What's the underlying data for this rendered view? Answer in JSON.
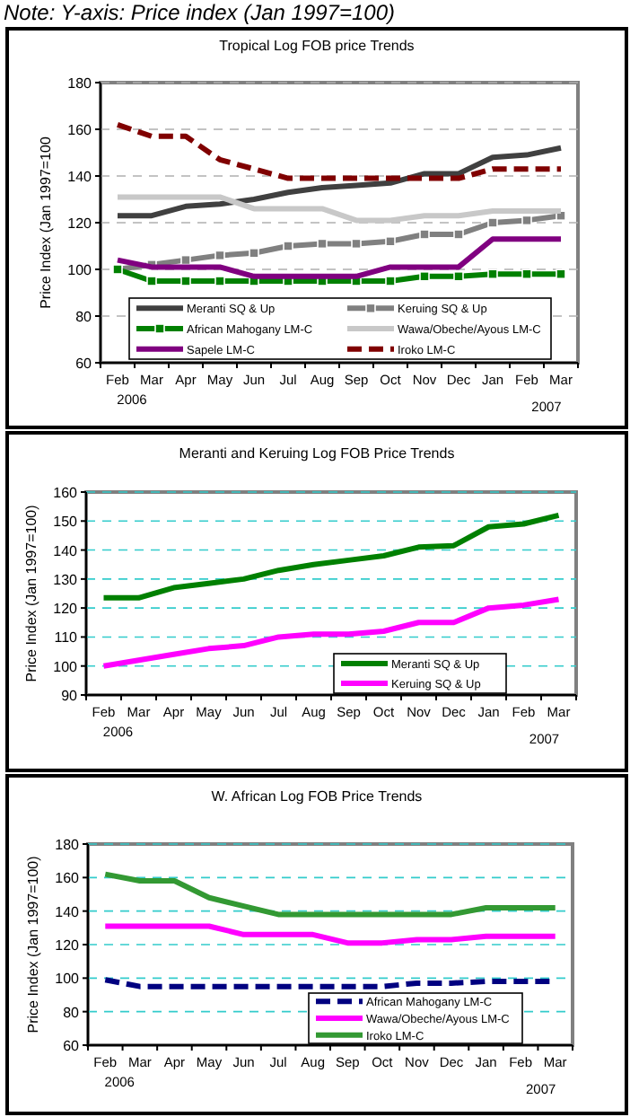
{
  "chart_data": [
    {
      "type": "line",
      "subtitle": "Note: Y-axis: Price index (Jan 1997=100)",
      "title": "Tropical Log FOB price Trends",
      "ylabel": "Price Index (Jan 1997=100",
      "categories": [
        "Feb",
        "Mar",
        "Apr",
        "May",
        "Jun",
        "Jul",
        "Aug",
        "Sep",
        "Oct",
        "Nov",
        "Dec",
        "Jan",
        "Feb",
        "Mar"
      ],
      "ylim": [
        60,
        180
      ],
      "yticks": [
        60,
        80,
        100,
        120,
        140,
        160,
        180
      ],
      "grid": "y",
      "legend": "bottom",
      "annotations": [
        "2006",
        "2007"
      ],
      "series": [
        {
          "name": "Meranti SQ & Up",
          "color": "#404040",
          "values": [
            123,
            123,
            127,
            128,
            130,
            133,
            135,
            136,
            137,
            141,
            141,
            148,
            149,
            152
          ]
        },
        {
          "name": "Keruing SQ & Up",
          "color": "#808080",
          "marker": "square",
          "values": [
            100,
            102,
            104,
            106,
            107,
            110,
            111,
            111,
            112,
            115,
            115,
            120,
            121,
            123
          ]
        },
        {
          "name": "African Mahogany LM-C",
          "color": "#008000",
          "marker": "square",
          "values": [
            100,
            95,
            95,
            95,
            95,
            95,
            95,
            95,
            95,
            97,
            97,
            98,
            98,
            98
          ]
        },
        {
          "name": "Wawa/Obeche/Ayous LM-C",
          "color": "#c8c8c8",
          "values": [
            131,
            131,
            131,
            131,
            126,
            126,
            126,
            121,
            121,
            123,
            123,
            125,
            125,
            125
          ]
        },
        {
          "name": "Sapele LM-C",
          "color": "#800080",
          "values": [
            104,
            101,
            101,
            101,
            97,
            97,
            97,
            97,
            101,
            101,
            101,
            113,
            113,
            113
          ]
        },
        {
          "name": "Iroko LM-C",
          "color": "#800000",
          "line_style": "dashed",
          "values": [
            162,
            157,
            157,
            147,
            143,
            139,
            139,
            139,
            139,
            139,
            139,
            143,
            143,
            143
          ]
        }
      ]
    },
    {
      "type": "line",
      "title": "Meranti and Keruing Log FOB Price Trends",
      "ylabel": "Price Index (Jan 1997=100)",
      "categories": [
        "Feb",
        "Mar",
        "Apr",
        "May",
        "Jun",
        "Jul",
        "Aug",
        "Sep",
        "Oct",
        "Nov",
        "Dec",
        "Jan",
        "Feb",
        "Mar"
      ],
      "ylim": [
        90,
        160
      ],
      "yticks": [
        90,
        100,
        110,
        120,
        130,
        140,
        150,
        160
      ],
      "grid": "y",
      "legend": "bottom right",
      "annotations": [
        "2006",
        "2007"
      ],
      "series": [
        {
          "name": "Meranti SQ & Up",
          "color": "#008000",
          "values": [
            123.5,
            123.5,
            127,
            128.5,
            130,
            133,
            135,
            136.5,
            138,
            141,
            141.5,
            148,
            149,
            152
          ]
        },
        {
          "name": "Keruing SQ & Up",
          "color": "#ff00ff",
          "values": [
            100,
            102,
            104,
            106,
            107,
            110,
            111,
            111,
            112,
            115,
            115,
            120,
            121,
            123
          ]
        }
      ]
    },
    {
      "type": "line",
      "title": "W. African Log FOB Price Trends",
      "ylabel": "Price Index (Jan 1997=100)",
      "categories": [
        "Feb",
        "Mar",
        "Apr",
        "May",
        "Jun",
        "Jul",
        "Aug",
        "Sep",
        "Oct",
        "Nov",
        "Dec",
        "Jan",
        "Feb",
        "Mar"
      ],
      "ylim": [
        60,
        180
      ],
      "yticks": [
        60,
        80,
        100,
        120,
        140,
        160,
        180
      ],
      "grid": "y",
      "legend": "bottom right",
      "annotations": [
        "2006",
        "2007"
      ],
      "series": [
        {
          "name": "African Mahogany LM-C",
          "color": "#000080",
          "line_style": "dashed",
          "values": [
            99,
            95,
            95,
            95,
            95,
            95,
            95,
            95,
            95,
            97,
            97,
            98,
            98,
            98
          ]
        },
        {
          "name": "Wawa/Obeche/Ayous LM-C",
          "color": "#ff00ff",
          "values": [
            131,
            131,
            131,
            131,
            126,
            126,
            126,
            121,
            121,
            123,
            123,
            125,
            125,
            125
          ]
        },
        {
          "name": "Iroko LM-C",
          "color": "#339933",
          "values": [
            162,
            158,
            158,
            148,
            143,
            138,
            138,
            138,
            138,
            138,
            138,
            142,
            142,
            142
          ]
        }
      ]
    }
  ]
}
